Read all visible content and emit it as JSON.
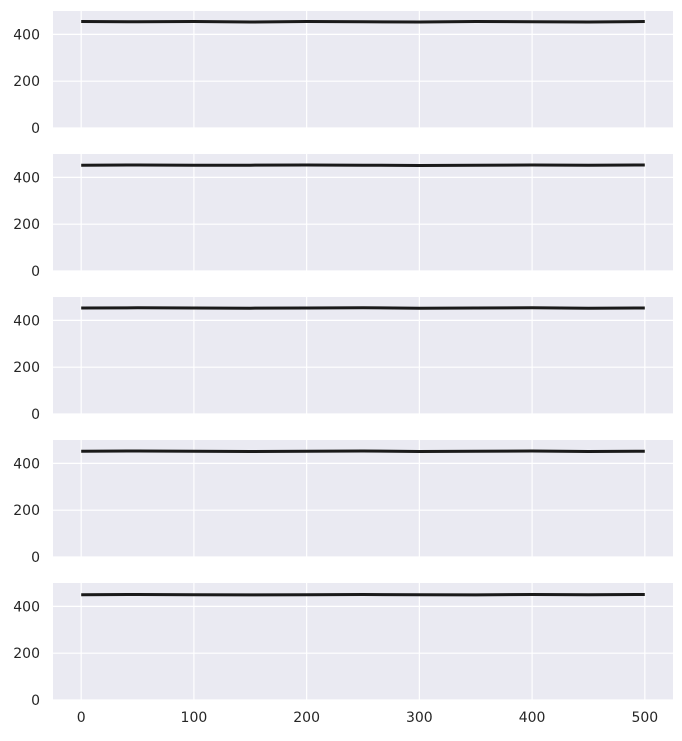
{
  "chart_data": [
    {
      "type": "line",
      "x": [
        0,
        50,
        100,
        150,
        200,
        250,
        300,
        350,
        400,
        450,
        500
      ],
      "series": [
        {
          "values": [
            455,
            454,
            455,
            453,
            455,
            454,
            453,
            455,
            454,
            453,
            455
          ]
        }
      ],
      "xlim": [
        -25,
        525
      ],
      "ylim": [
        0,
        500
      ],
      "xticks": [
        0,
        100,
        200,
        300,
        400,
        500
      ],
      "yticks": [
        0,
        200,
        400
      ],
      "show_x_tick_labels": false,
      "grid": true
    },
    {
      "type": "line",
      "x": [
        0,
        50,
        100,
        150,
        200,
        250,
        300,
        350,
        400,
        450,
        500
      ],
      "series": [
        {
          "values": [
            452,
            453,
            452,
            452,
            453,
            452,
            451,
            452,
            453,
            452,
            453
          ]
        }
      ],
      "xlim": [
        -25,
        525
      ],
      "ylim": [
        0,
        500
      ],
      "xticks": [
        0,
        100,
        200,
        300,
        400,
        500
      ],
      "yticks": [
        0,
        200,
        400
      ],
      "show_x_tick_labels": false,
      "grid": true
    },
    {
      "type": "line",
      "x": [
        0,
        50,
        100,
        150,
        200,
        250,
        300,
        350,
        400,
        450,
        500
      ],
      "series": [
        {
          "values": [
            453,
            454,
            453,
            452,
            453,
            454,
            452,
            453,
            454,
            452,
            453
          ]
        }
      ],
      "xlim": [
        -25,
        525
      ],
      "ylim": [
        0,
        500
      ],
      "xticks": [
        0,
        100,
        200,
        300,
        400,
        500
      ],
      "yticks": [
        0,
        200,
        400
      ],
      "show_x_tick_labels": false,
      "grid": true
    },
    {
      "type": "line",
      "x": [
        0,
        50,
        100,
        150,
        200,
        250,
        300,
        350,
        400,
        450,
        500
      ],
      "series": [
        {
          "values": [
            452,
            453,
            452,
            451,
            452,
            453,
            451,
            452,
            453,
            451,
            452
          ]
        }
      ],
      "xlim": [
        -25,
        525
      ],
      "ylim": [
        0,
        500
      ],
      "xticks": [
        0,
        100,
        200,
        300,
        400,
        500
      ],
      "yticks": [
        0,
        200,
        400
      ],
      "show_x_tick_labels": false,
      "grid": true
    },
    {
      "type": "line",
      "x": [
        0,
        50,
        100,
        150,
        200,
        250,
        300,
        350,
        400,
        450,
        500
      ],
      "series": [
        {
          "values": [
            450,
            451,
            450,
            449,
            450,
            451,
            450,
            449,
            451,
            450,
            451
          ]
        }
      ],
      "xlim": [
        -25,
        525
      ],
      "ylim": [
        0,
        500
      ],
      "xticks": [
        0,
        100,
        200,
        300,
        400,
        500
      ],
      "yticks": [
        0,
        200,
        400
      ],
      "show_x_tick_labels": true,
      "grid": true
    }
  ],
  "colors": {
    "panel_background": "#eaeaf2",
    "grid": "#ffffff",
    "series": "#1a1a1a",
    "tick_text": "#262626"
  }
}
